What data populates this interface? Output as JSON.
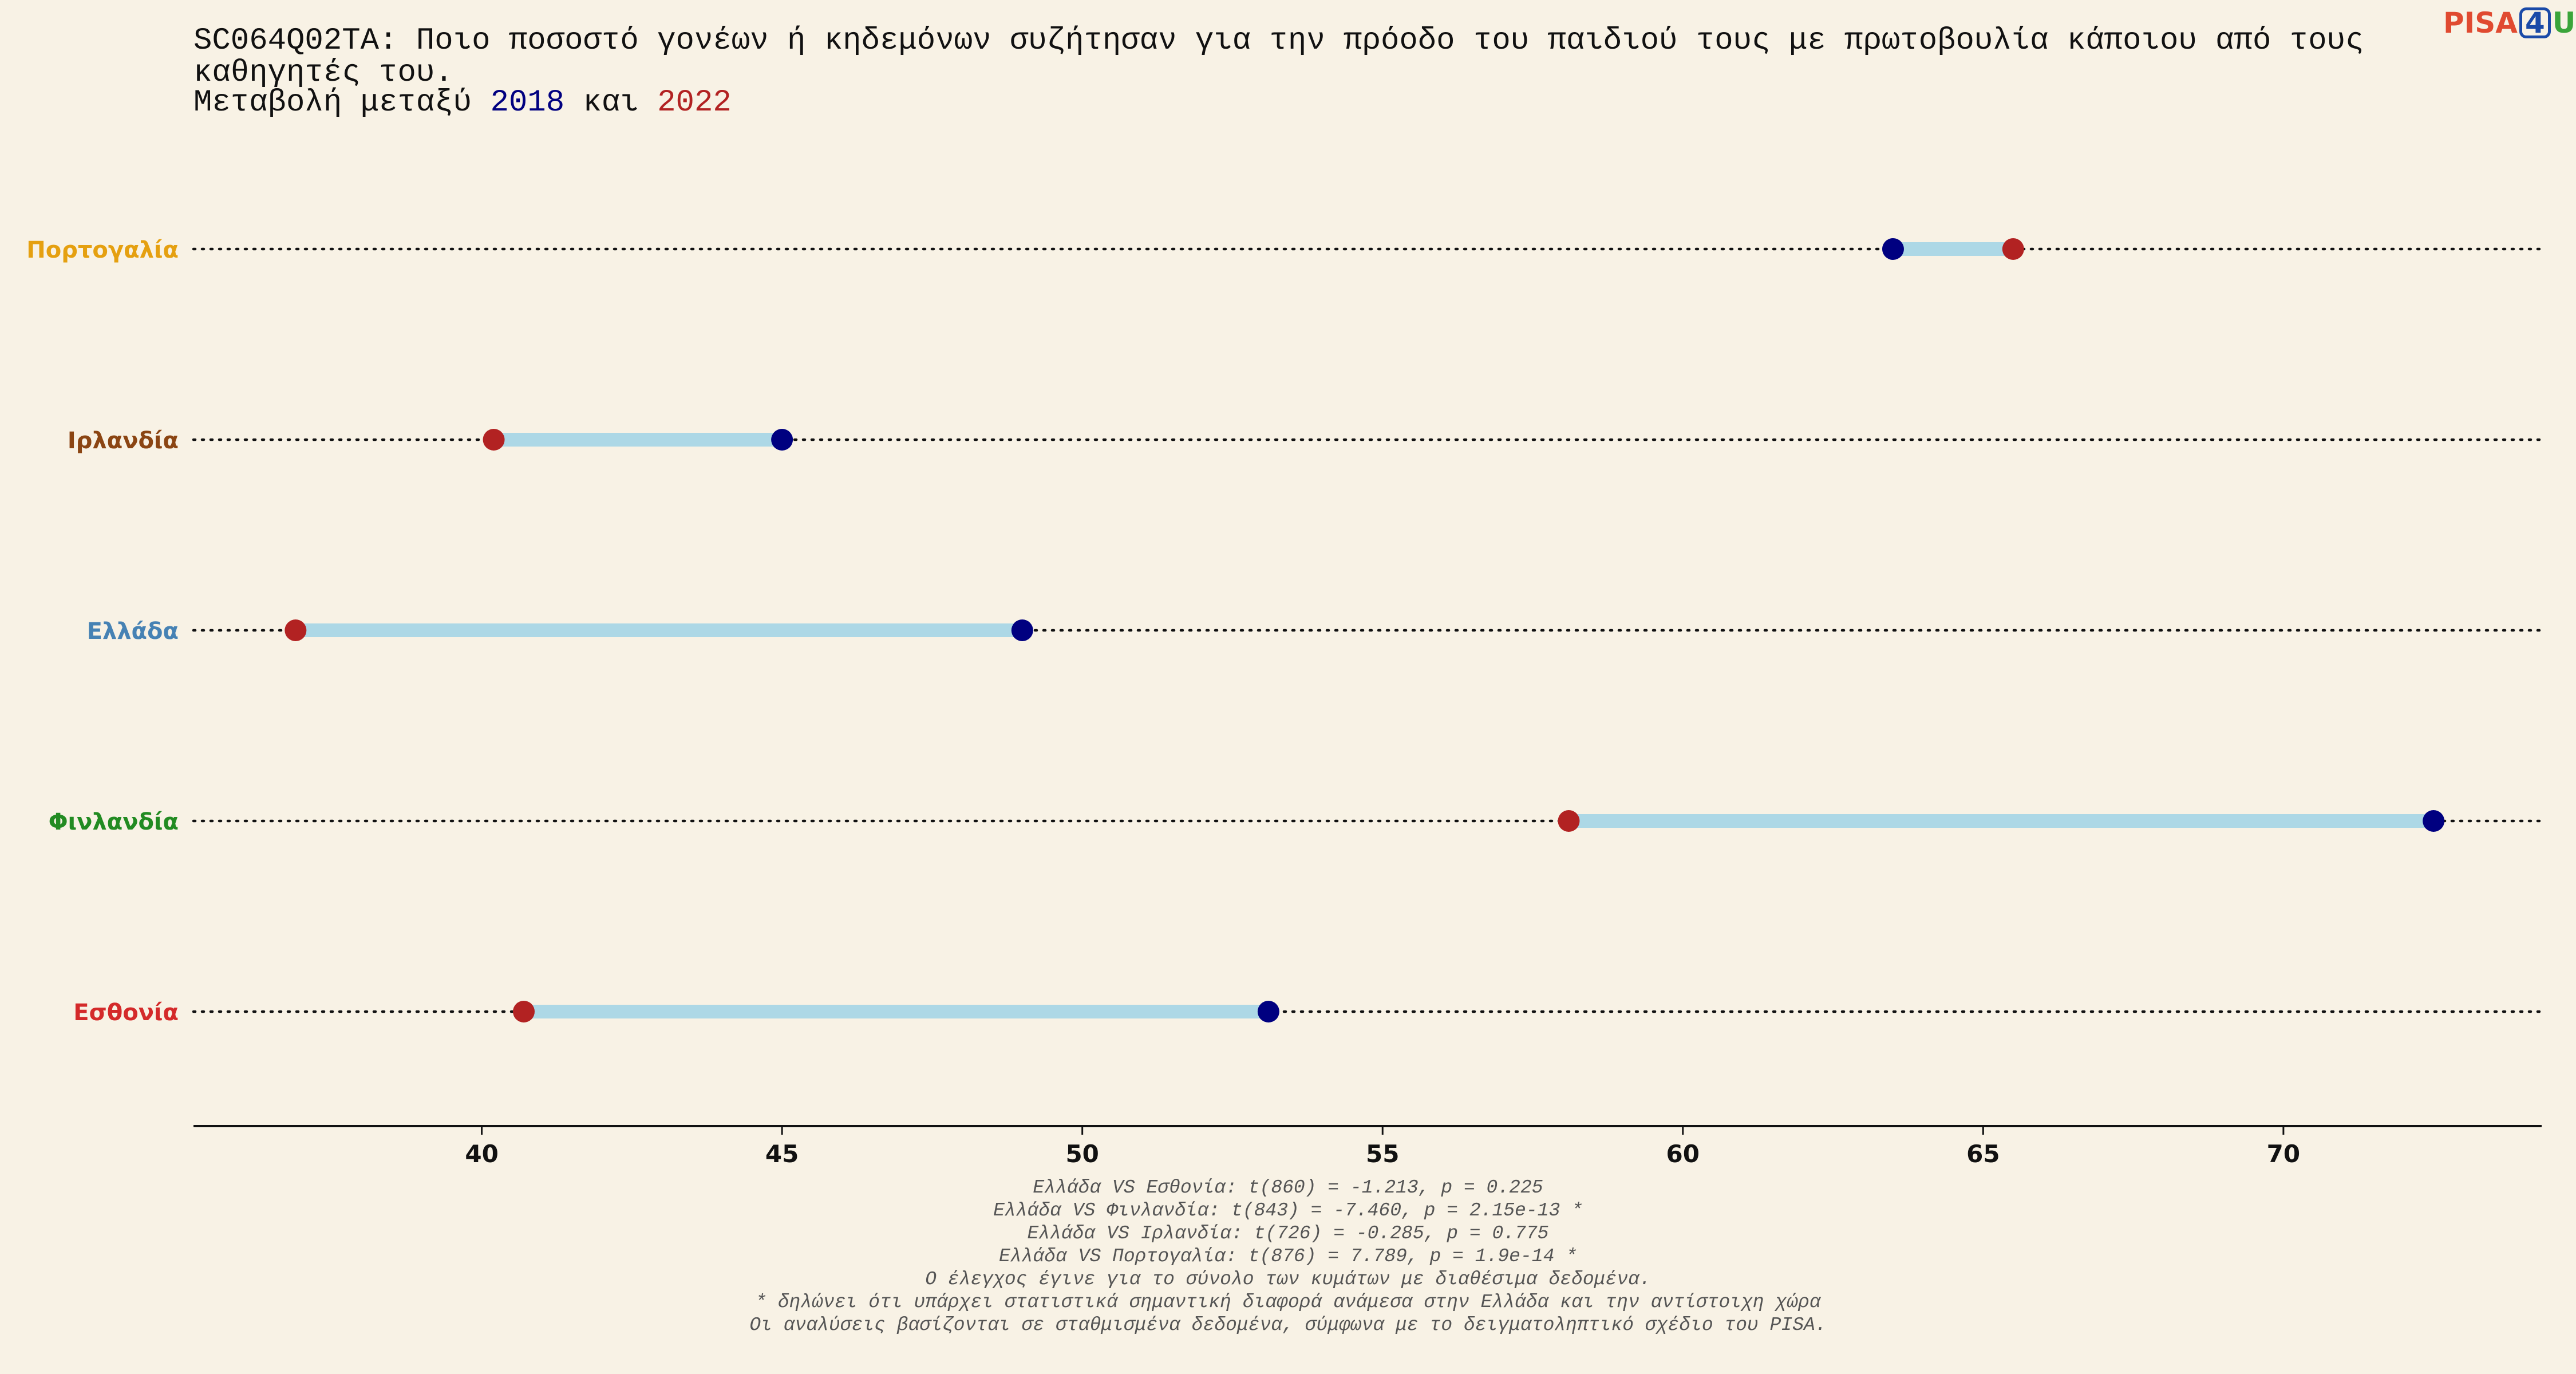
{
  "logo": {
    "part1": "PISA",
    "part2": "4",
    "part3": "U"
  },
  "colors": {
    "background": "#f8f2e5",
    "year_2018": "#000080",
    "year_2022": "#b22222",
    "segment": "#add8e6",
    "logo_pisa": "#e04a30",
    "logo_4": "#1a4aa8",
    "logo_u": "#3aa53a"
  },
  "chart_data": {
    "type": "dumbbell",
    "title": "SC064Q02TA: Ποιο ποσοστό γονέων ή κηδεμόνων συζήτησαν για την πρόοδο του παιδιού τους με πρωτοβουλία κάποιου από τους καθηγητές του.",
    "subtitle": {
      "prefix": "Μεταβολή μεταξύ ",
      "year1": "2018",
      "middle": " και ",
      "year2": "2022"
    },
    "xlim": [
      35.2,
      74.3
    ],
    "xticks": [
      40,
      45,
      50,
      55,
      60,
      65,
      70
    ],
    "categories": [
      {
        "label": "Πορτογαλία",
        "color": "#e5a010",
        "v2018": 63.5,
        "v2022": 65.5
      },
      {
        "label": "Ιρλανδία",
        "color": "#8b4513",
        "v2018": 45.0,
        "v2022": 40.2
      },
      {
        "label": "Ελλάδα",
        "color": "#4682b4",
        "v2018": 49.0,
        "v2022": 36.9
      },
      {
        "label": "Φινλανδία",
        "color": "#228b22",
        "v2018": 72.5,
        "v2022": 58.1
      },
      {
        "label": "Εσθονία",
        "color": "#d42a2a",
        "v2018": 53.1,
        "v2022": 40.7
      }
    ],
    "notes": [
      "Ελλάδα VS Εσθονία: t(860) = -1.213, p = 0.225",
      "Ελλάδα VS Φινλανδία: t(843) = -7.460, p = 2.15e-13 *",
      "Ελλάδα VS Ιρλανδία: t(726) = -0.285, p = 0.775",
      "Ελλάδα VS Πορτογαλία: t(876) = 7.789, p = 1.9e-14 *",
      "Ο έλεγχος έγινε για το σύνολο των κυμάτων με διαθέσιμα δεδομένα.",
      "* δηλώνει ότι υπάρχει στατιστικά σημαντική διαφορά ανάμεσα στην Ελλάδα και την αντίστοιχη χώρα",
      "Οι αναλύσεις βασίζονται σε σταθμισμένα δεδομένα, σύμφωνα με το δειγματοληπτικό σχέδιο του PISA."
    ]
  }
}
